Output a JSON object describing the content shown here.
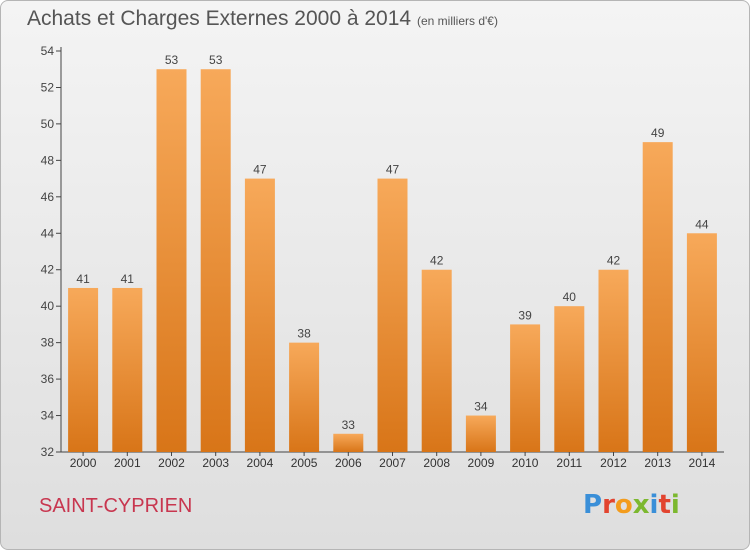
{
  "header": {
    "title": "Achats et Charges Externes 2000 à 2014",
    "subtitle": "(en milliers d'€)"
  },
  "footer": {
    "city": "SAINT-CYPRIEN",
    "logo_text": "Proxiti",
    "logo_colors": [
      "#3a8fd8",
      "#e2442f",
      "#f39c1c",
      "#7cb82f",
      "#3a8fd8",
      "#e2442f",
      "#7cb82f"
    ]
  },
  "colors": {
    "bar_light": "#f7a95a",
    "bar_dark": "#d87518",
    "axis": "#444444",
    "grid": "#cfcfcf"
  },
  "chart_data": {
    "type": "bar",
    "categories": [
      "2000",
      "2001",
      "2002",
      "2003",
      "2004",
      "2005",
      "2006",
      "2007",
      "2008",
      "2009",
      "2010",
      "2011",
      "2012",
      "2013",
      "2014"
    ],
    "values": [
      41,
      41,
      53,
      53,
      47,
      38,
      33,
      47,
      42,
      34,
      39,
      40,
      42,
      49,
      44
    ],
    "data_labels": [
      "41",
      "41",
      "53",
      "53",
      "47",
      "38",
      "33",
      "47",
      "42",
      "34",
      "39",
      "40",
      "42",
      "49",
      "44"
    ],
    "title": "Achats et Charges Externes 2000 à 2014",
    "ylim": [
      32,
      54
    ],
    "yticks": [
      32,
      34,
      36,
      38,
      40,
      42,
      44,
      46,
      48,
      50,
      52,
      54
    ],
    "grid": false,
    "legend": "none"
  }
}
